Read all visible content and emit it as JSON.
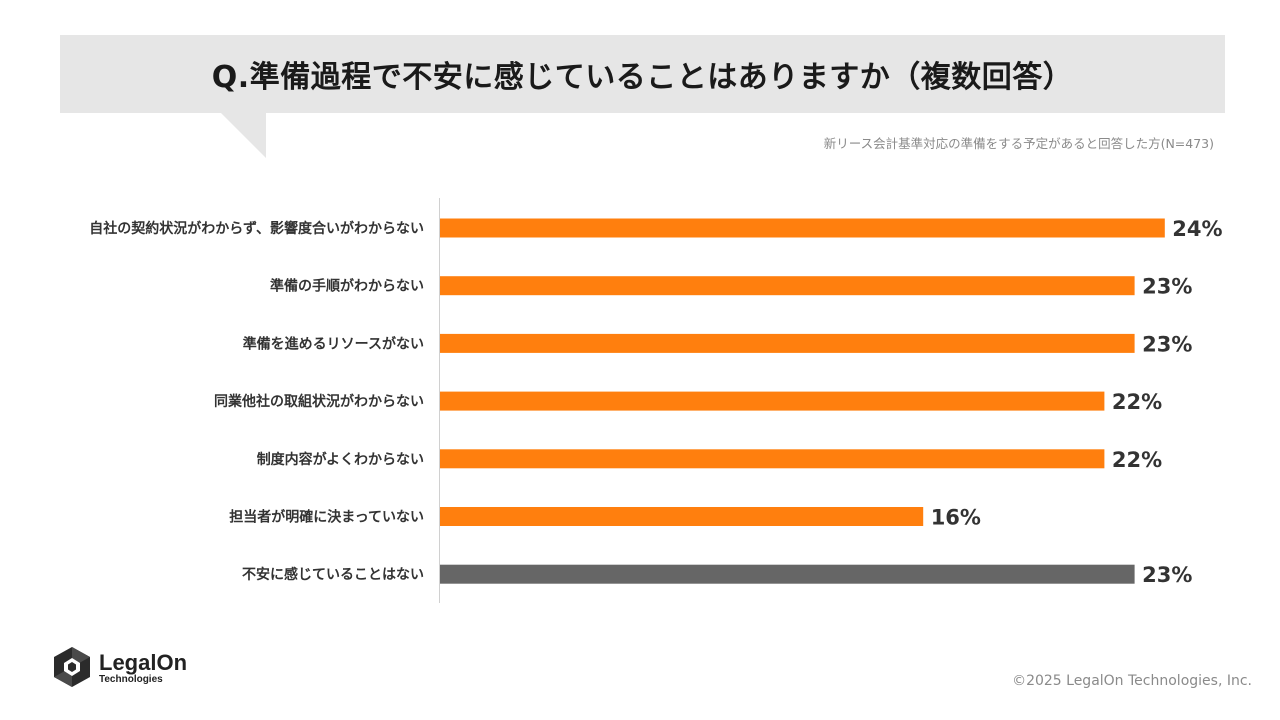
{
  "header": {
    "title": "Q.準備過程で不安に感じていることはありますか（複数回答）",
    "subtitle": "新リース会計基準対応の準備をする予定があると回答した方(N=473)"
  },
  "colors": {
    "bar_primary": "#FF7F0E",
    "bar_none": "#666666",
    "axis": "#D0D0D0"
  },
  "chart_data": {
    "type": "bar",
    "orientation": "horizontal",
    "categories": [
      "自社の契約状況がわからず、影響度合いがわからない",
      "準備の手順がわからない",
      "準備を進めるリソースがない",
      "同業他社の取組状況がわからない",
      "制度内容がよくわからない",
      "担当者が明確に決まっていない",
      "不安に感じていることはない"
    ],
    "values": [
      24,
      23,
      23,
      22,
      22,
      16,
      23
    ],
    "value_labels": [
      "24%",
      "23%",
      "23%",
      "22%",
      "22%",
      "16%",
      "23%"
    ],
    "bar_colors": [
      "#FF7F0E",
      "#FF7F0E",
      "#FF7F0E",
      "#FF7F0E",
      "#FF7F0E",
      "#FF7F0E",
      "#666666"
    ],
    "title": "Q.準備過程で不安に感じていることはありますか（複数回答）",
    "xlabel": "",
    "ylabel": "",
    "grid": false,
    "legend": "none"
  },
  "footer": {
    "logo_name": "LegalOn",
    "logo_sub": "Technologies",
    "copyright": "©2025 LegalOn Technologies, Inc."
  }
}
